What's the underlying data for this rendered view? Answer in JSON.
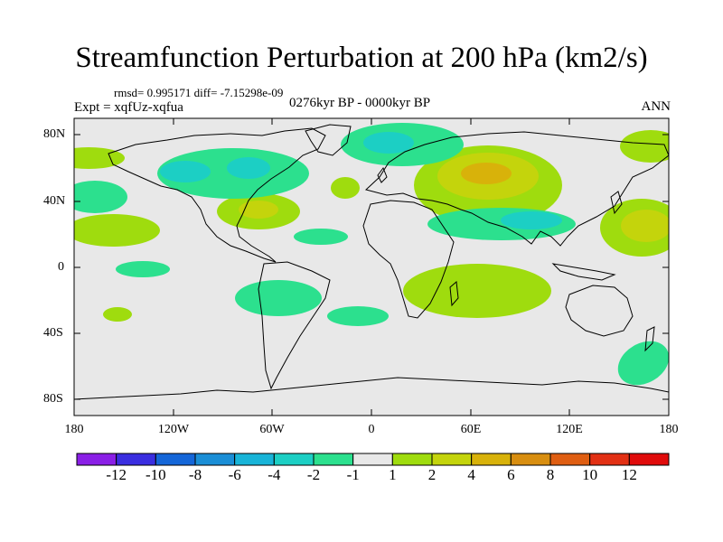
{
  "title": "Streamfunction Perturbation at 200 hPa (km2/s)",
  "stats": "rmsd= 0.995171 diff= -7.15298e-09",
  "experiment": "Expt = xqfUz-xqfua",
  "period": "0276kyr BP - 0000kyr BP",
  "season": "ANN",
  "y_axis_labels": [
    "80N",
    "40N",
    "0",
    "40S",
    "80S"
  ],
  "x_axis_labels": [
    "180",
    "120W",
    "60W",
    "0",
    "60E",
    "120E",
    "180"
  ],
  "colorbar": {
    "labels": [
      "-12",
      "-10",
      "-8",
      "-6",
      "-4",
      "-2",
      "-1",
      "1",
      "2",
      "4",
      "6",
      "8",
      "10",
      "12"
    ],
    "colors": [
      "#8a1fe6",
      "#3a2ee0",
      "#1466d8",
      "#1a8ed6",
      "#18b4d8",
      "#1ccfc4",
      "#2ce08e",
      "#e8e8e8",
      "#9fdc0e",
      "#c4d40c",
      "#d8b20a",
      "#d88e10",
      "#df5e12",
      "#e23014",
      "#e00b0b"
    ]
  },
  "colors": {
    "land_ocean_bg": "#e8e8e8",
    "coast": "#000000"
  }
}
